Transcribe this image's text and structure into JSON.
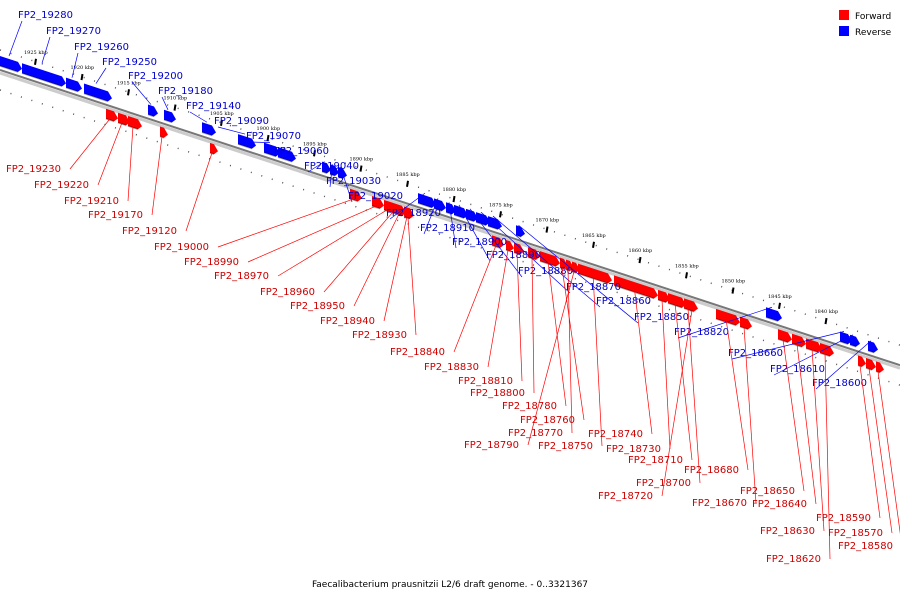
{
  "caption": "Faecalibacterium prausnitzii L2/6 draft genome. - 0..3321367",
  "legend": [
    {
      "label": "Forward",
      "color": "#ff0000"
    },
    {
      "label": "Reverse",
      "color": "#0000ff"
    }
  ],
  "colors": {
    "forward": "#ff0000",
    "reverse": "#0000ff",
    "forward_label": "#cc0000",
    "reverse_label": "#0000cc",
    "backbone": "#777777"
  },
  "ticks": [
    {
      "label": "1925 kbp"
    },
    {
      "label": "1920 kbp"
    },
    {
      "label": "1915 kbp"
    },
    {
      "label": "1910 kbp"
    },
    {
      "label": "1905 kbp"
    },
    {
      "label": "1900 kbp"
    },
    {
      "label": "1895 kbp"
    },
    {
      "label": "1890 kbp"
    },
    {
      "label": "1885 kbp"
    },
    {
      "label": "1880 kbp"
    },
    {
      "label": "1875 kbp"
    },
    {
      "label": "1870 kbp"
    },
    {
      "label": "1865 kbp"
    },
    {
      "label": "1860 kbp"
    },
    {
      "label": "1855 kbp"
    },
    {
      "label": "1850 kbp"
    },
    {
      "label": "1845 kbp"
    },
    {
      "label": "1840 kbp"
    }
  ],
  "reverse_genes": [
    "FP2_19280",
    "FP2_19270",
    "FP2_19260",
    "FP2_19250",
    "FP2_19200",
    "FP2_19180",
    "FP2_19140",
    "FP2_19090",
    "FP2_19070",
    "FP2_19060",
    "FP2_19040",
    "FP2_19030",
    "FP2_19020",
    "FP2_18920",
    "FP2_18910",
    "FP2_18900",
    "FP2_18890",
    "FP2_18880",
    "FP2_18870",
    "FP2_18860",
    "FP2_18850",
    "FP2_18820",
    "FP2_18660",
    "FP2_18610",
    "FP2_18600"
  ],
  "forward_genes": [
    "FP2_19230",
    "FP2_19220",
    "FP2_19210",
    "FP2_19170",
    "FP2_19120",
    "FP2_19000",
    "FP2_18990",
    "FP2_18970",
    "FP2_18960",
    "FP2_18950",
    "FP2_18940",
    "FP2_18930",
    "FP2_18840",
    "FP2_18830",
    "FP2_18810",
    "FP2_18800",
    "FP2_18780",
    "FP2_18760",
    "FP2_18770",
    "FP2_18790",
    "FP2_18750",
    "FP2_18740",
    "FP2_18730",
    "FP2_18710",
    "FP2_18700",
    "FP2_18720",
    "FP2_18680",
    "FP2_18670",
    "FP2_18650",
    "FP2_18640",
    "FP2_18630",
    "FP2_18620",
    "FP2_18590",
    "FP2_18570",
    "FP2_18580"
  ]
}
